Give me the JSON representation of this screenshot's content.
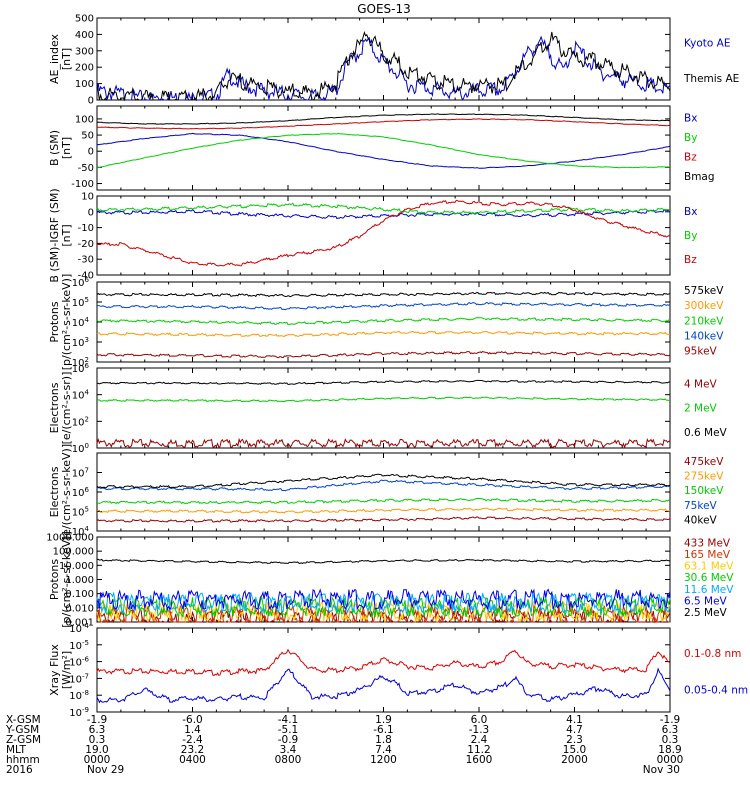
{
  "title": "GOES-13",
  "chart_data": [
    {
      "type": "line",
      "ylabel": "AE_index [nT]",
      "ylim": [
        0,
        500
      ],
      "scale": "linear",
      "yticks": [
        "500",
        "400",
        "300",
        "200",
        "100",
        "0"
      ],
      "ytick_values": [
        500,
        400,
        300,
        200,
        100,
        0
      ],
      "x_range_hours": [
        0,
        24
      ],
      "series": [
        {
          "name": "Kyoto AE",
          "color": "#0000cc",
          "x": [
            0,
            1,
            2,
            3,
            4,
            5,
            5.5,
            6,
            7,
            8,
            9,
            10,
            10.5,
            11,
            11.3,
            11.6,
            12,
            12.5,
            13,
            14,
            15,
            16,
            17,
            18,
            18.5,
            19,
            19.5,
            20,
            21,
            22,
            23,
            24
          ],
          "values": [
            80,
            60,
            30,
            40,
            30,
            50,
            180,
            120,
            80,
            60,
            40,
            80,
            250,
            320,
            380,
            330,
            260,
            200,
            120,
            100,
            60,
            80,
            90,
            300,
            380,
            300,
            200,
            350,
            200,
            150,
            120,
            80
          ]
        },
        {
          "name": "Themis AE",
          "color": "#000000",
          "x": [
            0,
            1,
            2,
            3,
            4,
            5,
            5.5,
            6,
            7,
            8,
            9,
            10,
            10.5,
            11,
            11.3,
            11.6,
            12,
            12.5,
            13,
            14,
            15,
            16,
            17,
            18,
            18.5,
            19,
            19.5,
            20,
            21,
            22,
            23,
            24
          ],
          "values": [
            70,
            50,
            40,
            30,
            40,
            60,
            150,
            140,
            100,
            80,
            60,
            120,
            280,
            360,
            430,
            380,
            300,
            260,
            200,
            150,
            110,
            120,
            110,
            250,
            320,
            400,
            330,
            280,
            260,
            200,
            150,
            100
          ]
        }
      ]
    },
    {
      "type": "line",
      "ylabel": "B (SM) [nT]",
      "ylim": [
        -120,
        140
      ],
      "scale": "linear",
      "yticks": [
        "100",
        "50",
        "0",
        "-50",
        "-100"
      ],
      "ytick_values": [
        100,
        50,
        0,
        -50,
        -100
      ],
      "series": [
        {
          "name": "Bx",
          "color": "#0000cc",
          "x": [
            0,
            2,
            4,
            6,
            8,
            10,
            12,
            14,
            16,
            18,
            20,
            22,
            24
          ],
          "values": [
            20,
            40,
            55,
            50,
            30,
            0,
            -25,
            -45,
            -52,
            -45,
            -30,
            -10,
            15
          ]
        },
        {
          "name": "By",
          "color": "#00cc00",
          "x": [
            0,
            2,
            4,
            6,
            8,
            10,
            12,
            14,
            16,
            18,
            20,
            22,
            24
          ],
          "values": [
            -50,
            -20,
            10,
            35,
            50,
            55,
            45,
            20,
            -10,
            -30,
            -45,
            -50,
            -48
          ]
        },
        {
          "name": "Bz",
          "color": "#cc0000",
          "x": [
            0,
            2,
            4,
            6,
            8,
            10,
            12,
            14,
            16,
            18,
            20,
            22,
            24
          ],
          "values": [
            75,
            72,
            70,
            72,
            78,
            85,
            92,
            98,
            100,
            98,
            92,
            85,
            80
          ]
        },
        {
          "name": "Bmag",
          "color": "#000000",
          "x": [
            0,
            2,
            4,
            6,
            8,
            10,
            12,
            14,
            16,
            18,
            20,
            22,
            24
          ],
          "values": [
            90,
            85,
            85,
            88,
            95,
            105,
            112,
            115,
            115,
            112,
            105,
            98,
            95
          ]
        }
      ]
    },
    {
      "type": "line",
      "ylabel": "B (SM)-IGRF (SM) [nT]",
      "ylim": [
        -40,
        10
      ],
      "scale": "linear",
      "yticks": [
        "10",
        "0",
        "-10",
        "-20",
        "-30",
        "-40"
      ],
      "ytick_values": [
        10,
        0,
        -10,
        -20,
        -30,
        -40
      ],
      "series": [
        {
          "name": "Bx",
          "color": "#0000cc",
          "x": [
            0,
            2,
            4,
            6,
            8,
            10,
            12,
            14,
            16,
            18,
            20,
            22,
            24
          ],
          "values": [
            0,
            0,
            1,
            -1,
            -2,
            -3,
            -2,
            -1,
            -1,
            -2,
            -1,
            0,
            1
          ]
        },
        {
          "name": "By",
          "color": "#00cc00",
          "x": [
            0,
            2,
            4,
            6,
            8,
            10,
            12,
            14,
            16,
            18,
            20,
            22,
            24
          ],
          "values": [
            2,
            2,
            3,
            4,
            5,
            4,
            2,
            0,
            0,
            1,
            2,
            1,
            2
          ]
        },
        {
          "name": "Bz",
          "color": "#cc0000",
          "x": [
            0,
            1,
            2,
            3,
            4,
            5,
            6,
            7,
            8,
            9,
            10,
            11,
            12,
            13,
            14,
            15,
            16,
            17,
            18,
            19,
            20,
            21,
            22,
            23,
            24
          ],
          "values": [
            -20,
            -20,
            -24,
            -28,
            -32,
            -33,
            -33,
            -30,
            -27,
            -25,
            -22,
            -15,
            -5,
            2,
            6,
            7,
            6,
            5,
            6,
            5,
            2,
            -4,
            -8,
            -12,
            -15
          ]
        }
      ]
    },
    {
      "type": "line",
      "ylabel": "Protons [p/(cm²-s-sr-keV)]",
      "ylim_log10": [
        2,
        6
      ],
      "scale": "log",
      "ytick_exponents": [
        6,
        5,
        4,
        3,
        2
      ],
      "series": [
        {
          "name": "575keV",
          "color": "#000000",
          "log10_values": [
            5.4,
            5.4,
            5.35,
            5.4,
            5.45,
            5.45,
            5.4
          ]
        },
        {
          "name": "300keV",
          "color": "#ff9900",
          "log10_values": [
            3.45,
            3.4,
            3.35,
            3.5,
            3.5,
            3.45,
            3.45
          ]
        },
        {
          "name": "210keV",
          "color": "#00cc00",
          "log10_values": [
            4.1,
            4.05,
            3.95,
            4.1,
            4.2,
            4.15,
            4.1
          ]
        },
        {
          "name": "140keV",
          "color": "#0044cc",
          "log10_values": [
            4.8,
            4.8,
            4.7,
            4.85,
            4.95,
            4.9,
            4.85
          ]
        },
        {
          "name": "95keV",
          "color": "#990000",
          "log10_values": [
            2.4,
            2.35,
            2.3,
            2.45,
            2.5,
            2.45,
            2.4
          ]
        }
      ]
    },
    {
      "type": "line",
      "ylabel": "Electrons [e/(cm²-s-sr)]",
      "ylim_log10": [
        0,
        6
      ],
      "scale": "log",
      "ytick_exponents": [
        6,
        4,
        2,
        0
      ],
      "series": [
        {
          "name": "4 MeV",
          "color": "#990000",
          "log10_values": [
            0.5,
            0.5,
            0.5,
            0.5,
            0.5,
            0.5,
            0.5
          ]
        },
        {
          "name": "2 MeV",
          "color": "#00cc00",
          "log10_values": [
            3.6,
            3.6,
            3.55,
            3.75,
            3.8,
            3.7,
            3.65
          ]
        },
        {
          "name": "0.6 MeV",
          "color": "#000000",
          "log10_values": [
            4.9,
            4.9,
            4.85,
            5.0,
            5.05,
            5.0,
            4.95
          ]
        }
      ]
    },
    {
      "type": "line",
      "ylabel": "Electrons [e/(cm²-s-sr-keV)]",
      "ylim_log10": [
        4,
        8
      ],
      "scale": "log",
      "ytick_exponents": [
        7,
        6,
        5,
        4
      ],
      "series": [
        {
          "name": "475keV",
          "color": "#990000",
          "log10_values": [
            4.55,
            4.55,
            4.55,
            4.6,
            4.7,
            4.65,
            4.6
          ]
        },
        {
          "name": "275keV",
          "color": "#ff9900",
          "log10_values": [
            5.05,
            5.05,
            5.0,
            5.1,
            5.15,
            5.1,
            5.1
          ]
        },
        {
          "name": "150keV",
          "color": "#00cc00",
          "log10_values": [
            5.5,
            5.5,
            5.5,
            5.6,
            5.65,
            5.55,
            5.6
          ]
        },
        {
          "name": "75keV",
          "color": "#0044cc",
          "log10_values": [
            6.2,
            6.2,
            6.15,
            6.6,
            6.4,
            6.2,
            6.3
          ]
        },
        {
          "name": "40keV",
          "color": "#000000",
          "log10_values": [
            6.3,
            6.3,
            6.6,
            6.9,
            6.7,
            6.4,
            6.4
          ]
        }
      ]
    },
    {
      "type": "line",
      "ylabel": "Protons [p/(cm²-s-sr-keV)]",
      "ylim_log10": [
        -3,
        3
      ],
      "scale": "log",
      "yticks": [
        "1000.000",
        "100.000",
        "10.000",
        "1.000",
        "0.100",
        "0.010",
        "0.001"
      ],
      "ytick_exponents": [
        3,
        2,
        1,
        0,
        -1,
        -2,
        -3
      ],
      "series": [
        {
          "name": "433 MeV",
          "color": "#990000",
          "log10_values": [
            -2.5,
            -2.5,
            -2.5,
            -2.5,
            -2.5,
            -2.5,
            -2.5
          ]
        },
        {
          "name": "165 MeV",
          "color": "#cc3300",
          "log10_values": [
            -2.2,
            -2.2,
            -2.2,
            -2.2,
            -2.2,
            -2.2,
            -2.2
          ]
        },
        {
          "name": "63.1 MeV",
          "color": "#ffcc00",
          "log10_values": [
            -1.9,
            -1.9,
            -1.9,
            -1.9,
            -1.9,
            -1.9,
            -1.9
          ]
        },
        {
          "name": "30.6 MeV",
          "color": "#00cc00",
          "log10_values": [
            -1.6,
            -1.6,
            -1.6,
            -1.6,
            -1.6,
            -1.6,
            -1.6
          ]
        },
        {
          "name": "11.6 MeV",
          "color": "#00aaff",
          "log10_values": [
            -1.3,
            -1.3,
            -1.3,
            -1.3,
            -1.3,
            -1.3,
            -1.3
          ]
        },
        {
          "name": "6.5 MeV",
          "color": "#0000ee",
          "log10_values": [
            -1.05,
            -1.05,
            -1.05,
            -1.05,
            -1.05,
            -1.05,
            -1.05
          ]
        },
        {
          "name": "2.5 MeV",
          "color": "#000000",
          "log10_values": [
            1.4,
            1.3,
            1.2,
            1.35,
            1.4,
            1.3,
            1.35
          ]
        }
      ]
    },
    {
      "type": "line",
      "ylabel": "Xray Flux [W/m²]",
      "ylim_log10": [
        -9,
        -4
      ],
      "scale": "log",
      "ytick_exponents": [
        -4,
        -5,
        -6,
        -7,
        -8,
        -9
      ],
      "series": [
        {
          "name": "0.1-0.8 nm",
          "color": "#dd0000",
          "x": [
            0,
            2,
            3,
            4,
            5,
            6,
            7,
            8,
            9,
            10,
            11,
            12,
            12.5,
            13,
            14,
            15,
            16,
            17,
            17.5,
            18,
            19,
            20,
            21,
            22,
            23,
            23.5,
            24
          ],
          "values": [
            -6.5,
            -6.5,
            -6.5,
            -6.5,
            -6.6,
            -6.5,
            -6.45,
            -5.2,
            -6.4,
            -6.45,
            -6.3,
            -5.8,
            -6.0,
            -6.2,
            -6.3,
            -6.0,
            -6.25,
            -5.9,
            -5.2,
            -6.0,
            -6.2,
            -6.1,
            -6.3,
            -6.4,
            -6.4,
            -5.3,
            -6.1
          ]
        },
        {
          "name": "0.05-0.4 nm",
          "color": "#0000dd",
          "x": [
            0,
            1,
            2,
            3,
            4,
            5,
            6,
            7,
            8,
            9,
            10,
            11,
            12,
            12.5,
            13,
            14,
            15,
            16,
            17,
            17.5,
            18,
            19,
            20,
            21,
            22,
            23,
            23.5,
            24
          ],
          "values": [
            -8.2,
            -8.2,
            -7.6,
            -8.2,
            -8.1,
            -8.2,
            -8.0,
            -8.1,
            -6.4,
            -8.0,
            -8.0,
            -7.6,
            -6.8,
            -7.2,
            -7.8,
            -7.7,
            -7.3,
            -7.8,
            -7.4,
            -6.9,
            -7.8,
            -8.2,
            -7.9,
            -7.5,
            -8.0,
            -7.9,
            -6.5,
            -7.6
          ]
        }
      ]
    }
  ],
  "legends": [
    [
      "Kyoto AE",
      "Themis AE"
    ],
    [
      "Bx",
      "By",
      "Bz",
      "Bmag"
    ],
    [
      "Bx",
      "By",
      "Bz"
    ],
    [
      "575keV",
      "300keV",
      "210keV",
      "140keV",
      "95keV"
    ],
    [
      "4 MeV",
      "2 MeV",
      "0.6 MeV"
    ],
    [
      "475keV",
      "275keV",
      "150keV",
      "75keV",
      "40keV"
    ],
    [
      "433 MeV",
      "165 MeV",
      "63.1 MeV",
      "30.6 MeV",
      "11.6 MeV",
      "6.5 MeV",
      "2.5 MeV"
    ],
    [
      "0.1-0.8 nm",
      "0.05-0.4 nm"
    ]
  ],
  "ylabels": [
    [
      "AE_index",
      "[nT]"
    ],
    [
      "B (SM)",
      "[nT]"
    ],
    [
      "B (SM)-IGRF (SM)",
      "[nT]"
    ],
    [
      "Protons",
      "[p/(cm²-s-sr-keV)]"
    ],
    [
      "Electrons",
      "[e/(cm²-s-sr)]"
    ],
    [
      "Electrons",
      "[e/(cm²-s-sr-keV)]"
    ],
    [
      "Protons",
      "[p/(cm²-s-sr-keV)]"
    ],
    [
      "Xray Flux",
      "[W/m²]"
    ]
  ],
  "ephemeris": {
    "labels": [
      "X-GSM",
      "Y-GSM",
      "Z-GSM",
      "MLT",
      "hhmm",
      "2016"
    ],
    "columns": [
      [
        "-1.9",
        "6.3",
        "0.3",
        "19.0",
        "0000",
        "Nov 29"
      ],
      [
        "-6.0",
        "1.4",
        "-2.4",
        "23.2",
        "0400",
        ""
      ],
      [
        "-4.1",
        "-5.1",
        "-0.9",
        "3.4",
        "0800",
        ""
      ],
      [
        "1.9",
        "-6.1",
        "1.8",
        "7.4",
        "1200",
        ""
      ],
      [
        "6.0",
        "-1.3",
        "2.4",
        "11.2",
        "1600",
        ""
      ],
      [
        "4.1",
        "4.7",
        "2.3",
        "15.0",
        "2000",
        ""
      ],
      [
        "-1.9",
        "6.3",
        "0.3",
        "18.9",
        "0000",
        "Nov 30"
      ]
    ]
  }
}
